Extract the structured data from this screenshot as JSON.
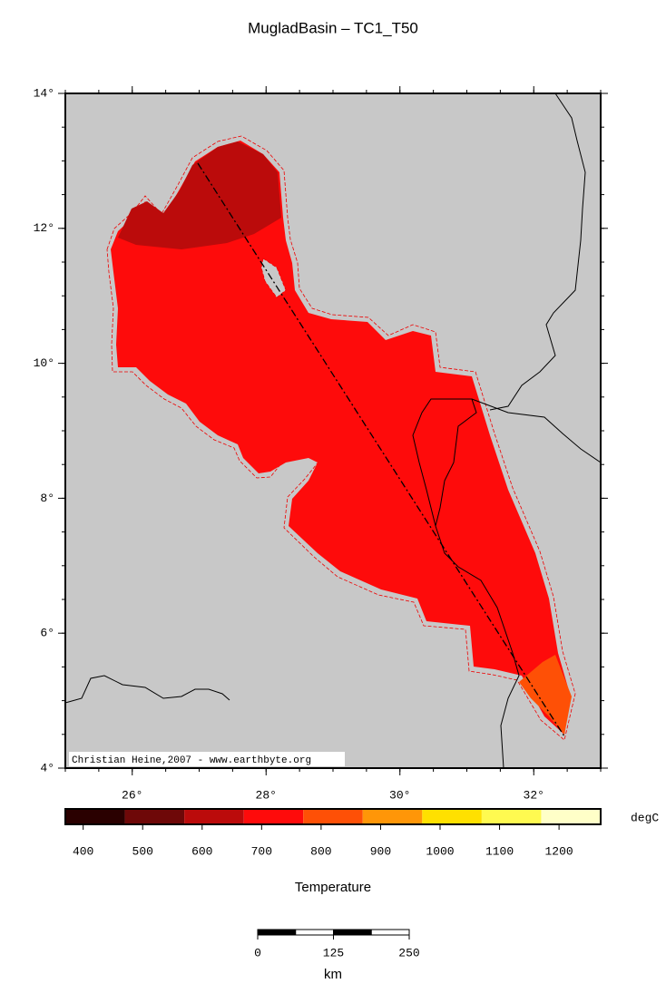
{
  "map": {
    "title": "MugladBasin – TC1_T50",
    "xlim": [
      25,
      33
    ],
    "ylim": [
      4,
      14
    ],
    "lon_ticks": [
      {
        "value": 26,
        "label": "26°"
      },
      {
        "value": 28,
        "label": "28°"
      },
      {
        "value": 30,
        "label": "30°"
      },
      {
        "value": 32,
        "label": "32°"
      }
    ],
    "lat_ticks": [
      {
        "value": 4,
        "label": "4°"
      },
      {
        "value": 6,
        "label": "6°"
      },
      {
        "value": 8,
        "label": "8°"
      },
      {
        "value": 10,
        "label": "10°"
      },
      {
        "value": 12,
        "label": "12°"
      },
      {
        "value": 14,
        "label": "14°"
      }
    ],
    "credit": "Christian Heine,2007 - www.earthbyte.org"
  },
  "colorbar": {
    "range": [
      370,
      1270
    ],
    "colors": [
      "#2a0000",
      "#6e0808",
      "#bb0b0b",
      "#fe0b0b",
      "#fe5006",
      "#ff9608",
      "#ffe000",
      "#fffa50",
      "#ffffc8"
    ],
    "ticks": [
      400,
      500,
      600,
      700,
      800,
      900,
      1000,
      1100,
      1200
    ],
    "unit": "degC",
    "label": "Temperature"
  },
  "scale_bar": {
    "range": [
      0,
      250
    ],
    "ticks": [
      0,
      125,
      250
    ],
    "unit": "km"
  }
}
